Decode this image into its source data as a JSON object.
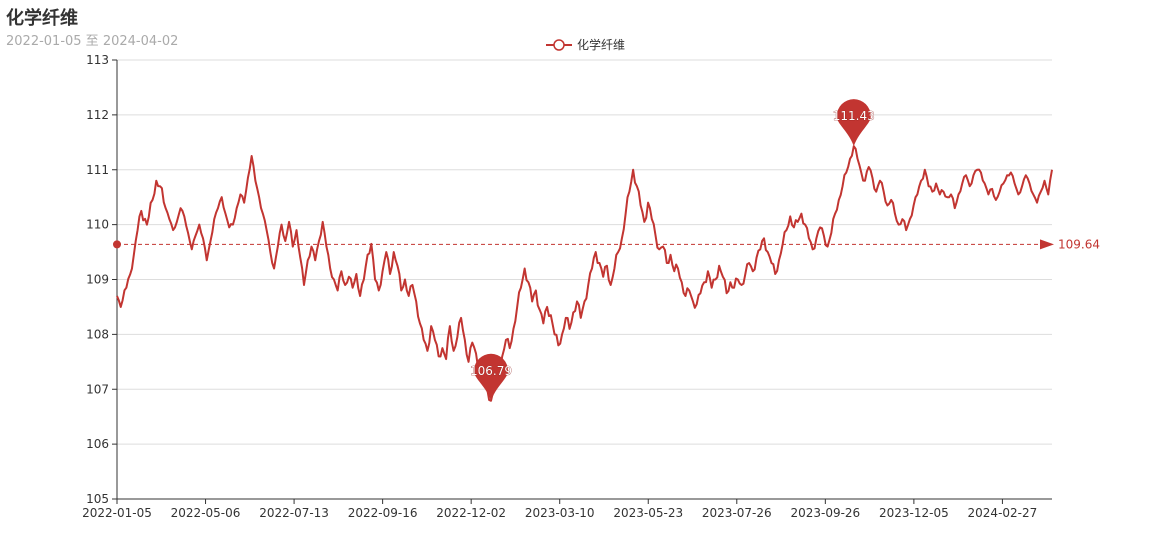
{
  "chart_data": {
    "type": "line",
    "title": "化学纤维",
    "subtitle": "2022-01-05 至 2024-04-02",
    "series": [
      {
        "name": "化学纤维",
        "color": "#c23531"
      }
    ],
    "x_tick_labels": [
      "2022-01-05",
      "2022-05-06",
      "2022-07-13",
      "2022-09-16",
      "2022-12-02",
      "2023-03-10",
      "2023-05-23",
      "2023-07-26",
      "2023-09-26",
      "2023-12-05",
      "2024-02-27"
    ],
    "ylim": [
      105,
      113
    ],
    "yticks": [
      105,
      106,
      107,
      108,
      109,
      110,
      111,
      112,
      113
    ],
    "points": 500,
    "anchors": [
      [
        0,
        108.7
      ],
      [
        2,
        108.5
      ],
      [
        5,
        108.85
      ],
      [
        8,
        109.2
      ],
      [
        11,
        109.9
      ],
      [
        13,
        110.25
      ],
      [
        16,
        110.0
      ],
      [
        19,
        110.45
      ],
      [
        21,
        110.8
      ],
      [
        23,
        110.7
      ],
      [
        26,
        110.3
      ],
      [
        28,
        110.1
      ],
      [
        30,
        109.9
      ],
      [
        32,
        110.05
      ],
      [
        34,
        110.3
      ],
      [
        36,
        110.15
      ],
      [
        38,
        109.85
      ],
      [
        40,
        109.55
      ],
      [
        42,
        109.8
      ],
      [
        44,
        110.0
      ],
      [
        46,
        109.75
      ],
      [
        48,
        109.35
      ],
      [
        50,
        109.7
      ],
      [
        52,
        110.1
      ],
      [
        54,
        110.3
      ],
      [
        56,
        110.5
      ],
      [
        58,
        110.2
      ],
      [
        60,
        109.95
      ],
      [
        62,
        110.0
      ],
      [
        64,
        110.3
      ],
      [
        66,
        110.55
      ],
      [
        68,
        110.4
      ],
      [
        70,
        110.85
      ],
      [
        72,
        111.25
      ],
      [
        74,
        110.8
      ],
      [
        76,
        110.5
      ],
      [
        78,
        110.2
      ],
      [
        80,
        109.9
      ],
      [
        82,
        109.5
      ],
      [
        84,
        109.2
      ],
      [
        86,
        109.6
      ],
      [
        88,
        110.0
      ],
      [
        90,
        109.7
      ],
      [
        92,
        110.05
      ],
      [
        94,
        109.6
      ],
      [
        96,
        109.9
      ],
      [
        98,
        109.4
      ],
      [
        100,
        108.9
      ],
      [
        102,
        109.35
      ],
      [
        104,
        109.6
      ],
      [
        106,
        109.35
      ],
      [
        108,
        109.7
      ],
      [
        110,
        110.05
      ],
      [
        112,
        109.6
      ],
      [
        114,
        109.2
      ],
      [
        116,
        109.0
      ],
      [
        118,
        108.8
      ],
      [
        120,
        109.15
      ],
      [
        122,
        108.9
      ],
      [
        124,
        109.05
      ],
      [
        126,
        108.85
      ],
      [
        128,
        109.1
      ],
      [
        130,
        108.7
      ],
      [
        132,
        109.0
      ],
      [
        134,
        109.45
      ],
      [
        136,
        109.65
      ],
      [
        138,
        109.0
      ],
      [
        140,
        108.8
      ],
      [
        142,
        109.15
      ],
      [
        144,
        109.5
      ],
      [
        146,
        109.1
      ],
      [
        148,
        109.5
      ],
      [
        150,
        109.25
      ],
      [
        152,
        108.8
      ],
      [
        154,
        109.0
      ],
      [
        156,
        108.7
      ],
      [
        158,
        108.9
      ],
      [
        160,
        108.6
      ],
      [
        162,
        108.2
      ],
      [
        164,
        107.9
      ],
      [
        166,
        107.7
      ],
      [
        168,
        108.15
      ],
      [
        170,
        107.9
      ],
      [
        172,
        107.6
      ],
      [
        174,
        107.75
      ],
      [
        176,
        107.55
      ],
      [
        178,
        108.15
      ],
      [
        180,
        107.7
      ],
      [
        182,
        107.95
      ],
      [
        184,
        108.3
      ],
      [
        186,
        107.9
      ],
      [
        188,
        107.5
      ],
      [
        190,
        107.85
      ],
      [
        192,
        107.65
      ],
      [
        194,
        107.35
      ],
      [
        196,
        107.2
      ],
      [
        198,
        107.0
      ],
      [
        200,
        106.79
      ],
      [
        202,
        107.05
      ],
      [
        204,
        107.35
      ],
      [
        206,
        107.6
      ],
      [
        208,
        107.9
      ],
      [
        210,
        107.75
      ],
      [
        212,
        108.1
      ],
      [
        214,
        108.5
      ],
      [
        216,
        108.85
      ],
      [
        218,
        109.2
      ],
      [
        220,
        108.95
      ],
      [
        222,
        108.6
      ],
      [
        224,
        108.8
      ],
      [
        226,
        108.45
      ],
      [
        228,
        108.2
      ],
      [
        230,
        108.5
      ],
      [
        232,
        108.35
      ],
      [
        234,
        108.0
      ],
      [
        236,
        107.8
      ],
      [
        238,
        108.0
      ],
      [
        240,
        108.3
      ],
      [
        242,
        108.1
      ],
      [
        244,
        108.4
      ],
      [
        246,
        108.6
      ],
      [
        248,
        108.3
      ],
      [
        250,
        108.6
      ],
      [
        252,
        108.9
      ],
      [
        254,
        109.2
      ],
      [
        256,
        109.5
      ],
      [
        258,
        109.3
      ],
      [
        260,
        109.05
      ],
      [
        262,
        109.25
      ],
      [
        264,
        108.9
      ],
      [
        266,
        109.2
      ],
      [
        268,
        109.5
      ],
      [
        270,
        109.75
      ],
      [
        272,
        110.2
      ],
      [
        274,
        110.6
      ],
      [
        276,
        111.0
      ],
      [
        278,
        110.7
      ],
      [
        280,
        110.35
      ],
      [
        282,
        110.05
      ],
      [
        284,
        110.4
      ],
      [
        286,
        110.1
      ],
      [
        288,
        109.8
      ],
      [
        290,
        109.55
      ],
      [
        292,
        109.6
      ],
      [
        294,
        109.3
      ],
      [
        296,
        109.45
      ],
      [
        298,
        109.15
      ],
      [
        300,
        109.2
      ],
      [
        302,
        108.95
      ],
      [
        304,
        108.7
      ],
      [
        306,
        108.8
      ],
      [
        308,
        108.6
      ],
      [
        310,
        108.55
      ],
      [
        312,
        108.75
      ],
      [
        314,
        108.95
      ],
      [
        316,
        109.15
      ],
      [
        318,
        108.85
      ],
      [
        320,
        109.0
      ],
      [
        322,
        109.25
      ],
      [
        324,
        109.05
      ],
      [
        326,
        108.75
      ],
      [
        328,
        108.95
      ],
      [
        330,
        108.85
      ],
      [
        332,
        109.0
      ],
      [
        334,
        108.9
      ],
      [
        336,
        109.1
      ],
      [
        338,
        109.3
      ],
      [
        340,
        109.15
      ],
      [
        342,
        109.4
      ],
      [
        344,
        109.55
      ],
      [
        346,
        109.75
      ],
      [
        348,
        109.5
      ],
      [
        350,
        109.3
      ],
      [
        352,
        109.1
      ],
      [
        354,
        109.35
      ],
      [
        356,
        109.65
      ],
      [
        358,
        109.9
      ],
      [
        360,
        110.15
      ],
      [
        362,
        109.95
      ],
      [
        364,
        110.05
      ],
      [
        366,
        110.2
      ],
      [
        368,
        110.0
      ],
      [
        370,
        109.75
      ],
      [
        372,
        109.55
      ],
      [
        374,
        109.75
      ],
      [
        376,
        109.95
      ],
      [
        378,
        109.8
      ],
      [
        380,
        109.6
      ],
      [
        382,
        109.85
      ],
      [
        384,
        110.2
      ],
      [
        386,
        110.45
      ],
      [
        388,
        110.7
      ],
      [
        390,
        110.95
      ],
      [
        392,
        111.2
      ],
      [
        394,
        111.43
      ],
      [
        396,
        111.2
      ],
      [
        398,
        110.95
      ],
      [
        400,
        110.8
      ],
      [
        402,
        111.05
      ],
      [
        404,
        110.85
      ],
      [
        406,
        110.6
      ],
      [
        408,
        110.8
      ],
      [
        410,
        110.6
      ],
      [
        412,
        110.35
      ],
      [
        414,
        110.45
      ],
      [
        416,
        110.2
      ],
      [
        418,
        110.0
      ],
      [
        420,
        110.1
      ],
      [
        422,
        109.9
      ],
      [
        424,
        110.1
      ],
      [
        426,
        110.35
      ],
      [
        428,
        110.55
      ],
      [
        430,
        110.8
      ],
      [
        432,
        111.0
      ],
      [
        434,
        110.7
      ],
      [
        436,
        110.6
      ],
      [
        438,
        110.75
      ],
      [
        440,
        110.55
      ],
      [
        442,
        110.6
      ],
      [
        444,
        110.5
      ],
      [
        446,
        110.55
      ],
      [
        448,
        110.3
      ],
      [
        450,
        110.55
      ],
      [
        452,
        110.75
      ],
      [
        454,
        110.9
      ],
      [
        456,
        110.7
      ],
      [
        458,
        110.9
      ],
      [
        460,
        111.0
      ],
      [
        462,
        110.95
      ],
      [
        464,
        110.75
      ],
      [
        466,
        110.55
      ],
      [
        468,
        110.65
      ],
      [
        470,
        110.45
      ],
      [
        472,
        110.6
      ],
      [
        474,
        110.75
      ],
      [
        476,
        110.9
      ],
      [
        478,
        110.95
      ],
      [
        480,
        110.75
      ],
      [
        482,
        110.55
      ],
      [
        484,
        110.7
      ],
      [
        486,
        110.9
      ],
      [
        488,
        110.75
      ],
      [
        490,
        110.55
      ],
      [
        492,
        110.4
      ],
      [
        494,
        110.6
      ],
      [
        496,
        110.8
      ],
      [
        498,
        110.55
      ],
      [
        500,
        111.0
      ]
    ],
    "max_point": {
      "value": 111.43,
      "label": "111.43"
    },
    "min_point": {
      "value": 106.79,
      "label": "106.79"
    },
    "average": {
      "value": 109.64,
      "label": "109.64"
    }
  }
}
